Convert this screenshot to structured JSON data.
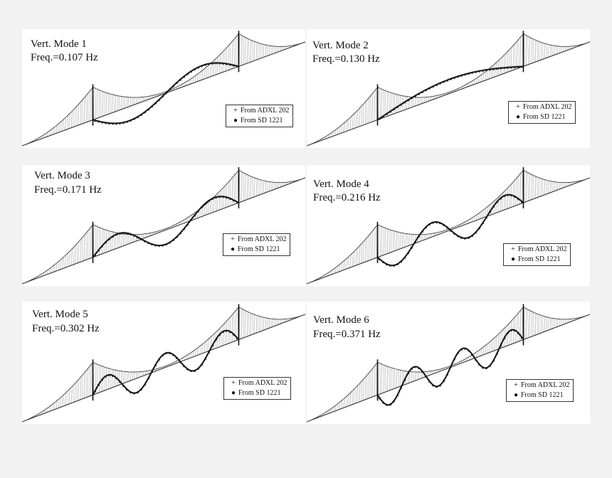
{
  "colors": {
    "background": "#f2f2f2",
    "panel": "#ffffff",
    "line": "#222222",
    "cable": "#555555"
  },
  "legend": {
    "series_a": {
      "label": "From ADXL 202",
      "marker": "plus"
    },
    "series_b": {
      "label": "From SD 1221",
      "marker": "dot"
    }
  },
  "panels": [
    {
      "title": "Vert. Mode 1",
      "freq": "Freq.=0.107 Hz",
      "mode_number": 1,
      "frequency_hz": 0.107
    },
    {
      "title": "Vert. Mode 2",
      "freq": "Freq.=0.130 Hz",
      "mode_number": 2,
      "frequency_hz": 0.13
    },
    {
      "title": "Vert. Mode 3",
      "freq": "Freq.=0.171 Hz",
      "mode_number": 3,
      "frequency_hz": 0.171
    },
    {
      "title": "Vert. Mode 4",
      "freq": "Freq.=0.216 Hz",
      "mode_number": 4,
      "frequency_hz": 0.216
    },
    {
      "title": "Vert. Mode 5",
      "freq": "Freq.=0.302 Hz",
      "mode_number": 5,
      "frequency_hz": 0.302
    },
    {
      "title": "Vert. Mode 6",
      "freq": "Freq.=0.371 Hz",
      "mode_number": 6,
      "frequency_hz": 0.371
    }
  ]
}
